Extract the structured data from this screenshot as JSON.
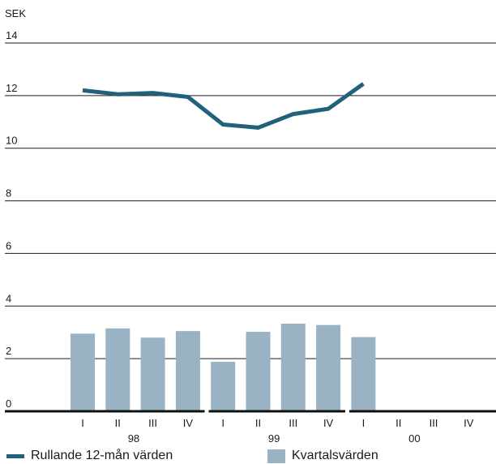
{
  "chart_data": {
    "type": "bar+line",
    "unit_label": "SEK",
    "ylim": [
      0,
      14
    ],
    "yticks": [
      "0",
      "2",
      "4",
      "6",
      "8",
      "10",
      "12",
      "14"
    ],
    "groups": [
      {
        "label": "98",
        "quarters": [
          "I",
          "II",
          "III",
          "IV"
        ]
      },
      {
        "label": "99",
        "quarters": [
          "I",
          "II",
          "III",
          "IV"
        ]
      },
      {
        "label": "00",
        "quarters": [
          "I",
          "II",
          "III",
          "IV"
        ]
      }
    ],
    "series": [
      {
        "name": "Rullande 12-mån värden",
        "type": "line",
        "color": "#22617c",
        "values": [
          12.2,
          12.05,
          12.1,
          11.95,
          10.9,
          10.78,
          11.3,
          11.5,
          12.45,
          null,
          null,
          null
        ]
      },
      {
        "name": "Kvartalsvärden",
        "type": "bar",
        "color": "#99b3c5",
        "values": [
          2.95,
          3.15,
          2.8,
          3.05,
          1.88,
          3.02,
          3.33,
          3.28,
          2.82,
          null,
          null,
          null
        ]
      }
    ],
    "grid": true,
    "legend_position": "bottom"
  }
}
